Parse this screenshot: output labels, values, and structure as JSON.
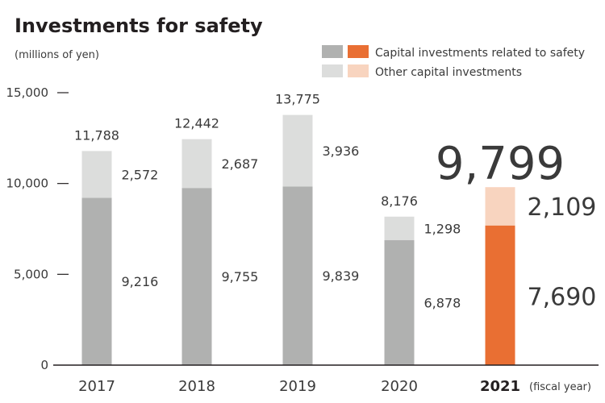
{
  "chart_data": {
    "type": "bar",
    "stacked": true,
    "title": "Investments for safety",
    "unit_label": "(millions of yen)",
    "xlabel": "(fiscal year)",
    "categories": [
      "2017",
      "2018",
      "2019",
      "2020",
      "2021"
    ],
    "highlight_category": "2021",
    "series": [
      {
        "name": "Capital investments related to safety",
        "values": [
          9216,
          9755,
          9839,
          6878,
          7690
        ],
        "value_labels": [
          "9,216",
          "9,755",
          "9,839",
          "6,878",
          "7,690"
        ]
      },
      {
        "name": "Other capital investments",
        "values": [
          2572,
          2687,
          3936,
          1298,
          2109
        ],
        "value_labels": [
          "2,572",
          "2,687",
          "3,936",
          "1,298",
          "2,109"
        ]
      }
    ],
    "totals": [
      11788,
      12442,
      13775,
      8176,
      9799
    ],
    "total_labels": [
      "11,788",
      "12,442",
      "13,775",
      "8,176",
      "9,799"
    ],
    "ylim": [
      0,
      15000
    ],
    "yticks": [
      0,
      5000,
      10000,
      15000
    ],
    "ytick_labels": [
      "0",
      "5,000",
      "10,000",
      "15,000"
    ],
    "legend_position": "top-right",
    "colors": {
      "safety": "#b0b1b0",
      "other": "#dcdddc",
      "safety_highlight": "#e96f33",
      "other_highlight": "#f8d4bf",
      "axis": "#231f20"
    }
  }
}
